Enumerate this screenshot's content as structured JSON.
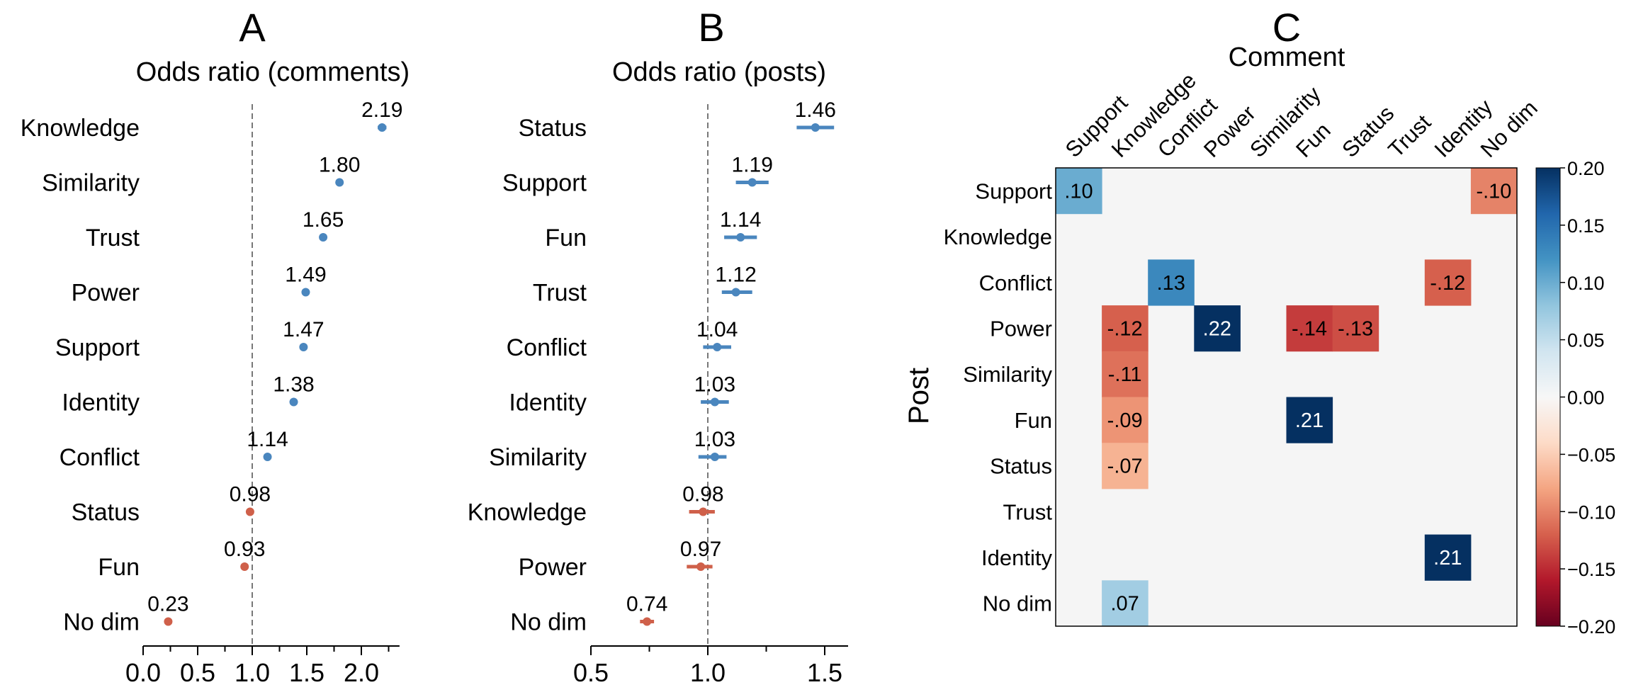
{
  "chart_data": [
    {
      "type": "scatter",
      "panel_label": "A",
      "title": "Odds ratio (comments)",
      "xlim": [
        0.0,
        2.35
      ],
      "xticks": [
        "0.0",
        "0.5",
        "1.0",
        "1.5",
        "2.0"
      ],
      "xtick_values": [
        0.0,
        0.5,
        1.0,
        1.5,
        2.0
      ],
      "reference_line": 1.0,
      "grid": false,
      "categories": [
        "Knowledge",
        "Similarity",
        "Trust",
        "Power",
        "Support",
        "Identity",
        "Conflict",
        "Status",
        "Fun",
        "No dim"
      ],
      "values": [
        2.19,
        1.8,
        1.65,
        1.49,
        1.47,
        1.38,
        1.14,
        0.98,
        0.93,
        0.23
      ],
      "value_labels": [
        "2.19",
        "1.80",
        "1.65",
        "1.49",
        "1.47",
        "1.38",
        "1.14",
        "0.98",
        "0.93",
        "0.23"
      ],
      "ci_low": [
        2.15,
        1.77,
        1.62,
        1.47,
        1.45,
        1.36,
        1.12,
        0.97,
        0.92,
        0.21
      ],
      "ci_high": [
        2.23,
        1.83,
        1.68,
        1.51,
        1.49,
        1.4,
        1.16,
        0.99,
        0.94,
        0.25
      ]
    },
    {
      "type": "scatter",
      "panel_label": "B",
      "title": "Odds ratio (posts)",
      "xlim": [
        0.5,
        1.6
      ],
      "xticks": [
        "0.5",
        "1.0",
        "1.5"
      ],
      "xtick_values": [
        0.5,
        1.0,
        1.5
      ],
      "reference_line": 1.0,
      "grid": false,
      "categories": [
        "Status",
        "Support",
        "Fun",
        "Trust",
        "Conflict",
        "Identity",
        "Similarity",
        "Knowledge",
        "Power",
        "No dim"
      ],
      "values": [
        1.46,
        1.19,
        1.14,
        1.12,
        1.04,
        1.03,
        1.03,
        0.98,
        0.97,
        0.74
      ],
      "value_labels": [
        "1.46",
        "1.19",
        "1.14",
        "1.12",
        "1.04",
        "1.03",
        "1.03",
        "0.98",
        "0.97",
        "0.74"
      ],
      "ci_low": [
        1.38,
        1.12,
        1.07,
        1.06,
        0.98,
        0.97,
        0.96,
        0.92,
        0.91,
        0.71
      ],
      "ci_high": [
        1.54,
        1.26,
        1.21,
        1.19,
        1.1,
        1.09,
        1.08,
        1.03,
        1.02,
        0.77
      ]
    },
    {
      "type": "heatmap",
      "panel_label": "C",
      "xlabel": "Comment",
      "ylabel": "Post",
      "x_categories": [
        "Support",
        "Knowledge",
        "Conflict",
        "Power",
        "Similarity",
        "Fun",
        "Status",
        "Trust",
        "Identity",
        "No dim"
      ],
      "y_categories": [
        "Support",
        "Knowledge",
        "Conflict",
        "Power",
        "Similarity",
        "Fun",
        "Status",
        "Trust",
        "Identity",
        "No dim"
      ],
      "values": [
        [
          0.1,
          null,
          null,
          null,
          null,
          null,
          null,
          null,
          null,
          -0.1
        ],
        [
          null,
          null,
          null,
          null,
          null,
          null,
          null,
          null,
          null,
          null
        ],
        [
          null,
          null,
          0.13,
          null,
          null,
          null,
          null,
          null,
          -0.12,
          null
        ],
        [
          null,
          -0.12,
          null,
          0.22,
          null,
          -0.14,
          -0.13,
          null,
          null,
          null
        ],
        [
          null,
          -0.11,
          null,
          null,
          null,
          null,
          null,
          null,
          null,
          null
        ],
        [
          null,
          -0.09,
          null,
          null,
          null,
          0.21,
          null,
          null,
          null,
          null
        ],
        [
          null,
          -0.07,
          null,
          null,
          null,
          null,
          null,
          null,
          null,
          null
        ],
        [
          null,
          null,
          null,
          null,
          null,
          null,
          null,
          null,
          null,
          null
        ],
        [
          null,
          null,
          null,
          null,
          null,
          null,
          null,
          null,
          0.21,
          null
        ],
        [
          null,
          0.07,
          null,
          null,
          null,
          null,
          null,
          null,
          null,
          null
        ]
      ],
      "cell_labels": [
        [
          ".10",
          "",
          "",
          "",
          "",
          "",
          "",
          "",
          "",
          "-.10"
        ],
        [
          "",
          "",
          "",
          "",
          "",
          "",
          "",
          "",
          "",
          ""
        ],
        [
          "",
          "",
          ".13",
          "",
          "",
          "",
          "",
          "",
          "-.12",
          ""
        ],
        [
          "",
          "-.12",
          "",
          ".22",
          "",
          "-.14",
          "-.13",
          "",
          "",
          ""
        ],
        [
          "",
          "-.11",
          "",
          "",
          "",
          "",
          "",
          "",
          "",
          ""
        ],
        [
          "",
          "-.09",
          "",
          "",
          "",
          ".21",
          "",
          "",
          "",
          ""
        ],
        [
          "",
          "-.07",
          "",
          "",
          "",
          "",
          "",
          "",
          "",
          ""
        ],
        [
          "",
          "",
          "",
          "",
          "",
          "",
          "",
          "",
          "",
          ""
        ],
        [
          "",
          "",
          "",
          "",
          "",
          "",
          "",
          "",
          ".21",
          ""
        ],
        [
          "",
          ".07",
          "",
          "",
          "",
          "",
          "",
          "",
          "",
          ""
        ]
      ],
      "colormap": "RdBu",
      "vmin": -0.2,
      "vmax": 0.2,
      "colorbar_ticks": [
        "0.20",
        "0.15",
        "0.10",
        "0.05",
        "0.00",
        "−0.05",
        "−0.10",
        "−0.15",
        "−0.20"
      ],
      "colorbar_tick_values": [
        0.2,
        0.15,
        0.1,
        0.05,
        0.0,
        -0.05,
        -0.1,
        -0.15,
        -0.2
      ],
      "empty_cell_color": "#f5f5f5"
    }
  ],
  "colors": {
    "positive": "#4a86be",
    "negative": "#cf604a",
    "reference_line": "#777777",
    "rdbu": [
      "#67001f",
      "#b2182b",
      "#d6604d",
      "#f4a582",
      "#fddbc7",
      "#f7f7f7",
      "#d1e5f0",
      "#92c5de",
      "#4393c3",
      "#2166ac",
      "#053061"
    ]
  }
}
